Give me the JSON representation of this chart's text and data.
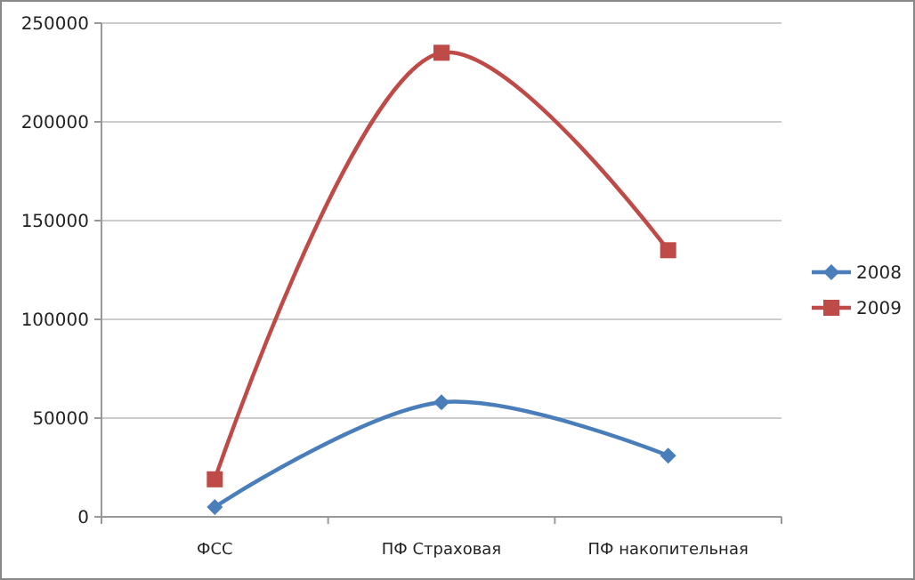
{
  "chart_data": {
    "type": "line",
    "categories": [
      "ФСС",
      "ПФ Страховая",
      "ПФ накопительная"
    ],
    "series": [
      {
        "name": "2008",
        "color": "#4a7ebb",
        "marker": "diamond",
        "values": [
          5000,
          58000,
          31000
        ]
      },
      {
        "name": "2009",
        "color": "#be4b48",
        "marker": "square",
        "values": [
          19000,
          235000,
          135000
        ]
      }
    ],
    "ylim": [
      0,
      250000
    ],
    "yticks": [
      0,
      50000,
      100000,
      150000,
      200000,
      250000
    ],
    "grid": "y",
    "legend": "right",
    "line_style": "solid"
  }
}
